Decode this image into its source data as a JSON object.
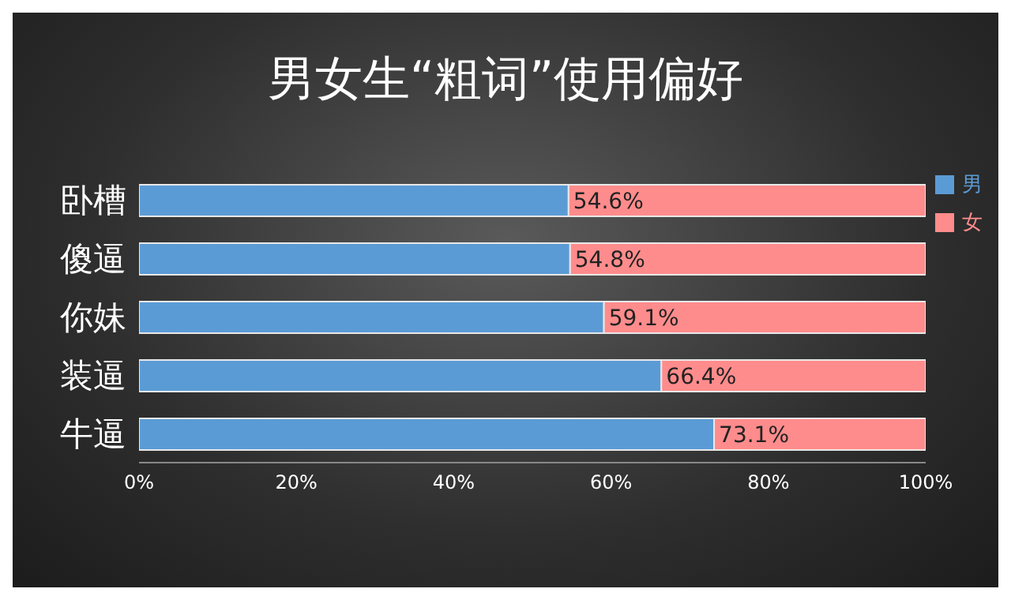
{
  "chart_data": {
    "type": "bar",
    "orientation": "horizontal",
    "stacked": true,
    "title": "男女生“粗词”使用偏好",
    "categories": [
      "卧槽",
      "傻逼",
      "你妹",
      "装逼",
      "牛逼"
    ],
    "series": [
      {
        "name": "男",
        "color": "#5b9bd5",
        "values": [
          54.6,
          54.8,
          59.1,
          66.4,
          73.1
        ],
        "value_labels": [
          "54.6%",
          "54.8%",
          "59.1%",
          "66.4%",
          "73.1%"
        ]
      },
      {
        "name": "女",
        "color": "#ff8c8c",
        "values": [
          45.4,
          45.2,
          40.9,
          33.6,
          26.9
        ]
      }
    ],
    "xlim": [
      0,
      100
    ],
    "xticks": [
      {
        "value": 0,
        "label": "0%"
      },
      {
        "value": 20,
        "label": "20%"
      },
      {
        "value": 40,
        "label": "40%"
      },
      {
        "value": 60,
        "label": "60%"
      },
      {
        "value": 80,
        "label": "80%"
      },
      {
        "value": 100,
        "label": "100%"
      }
    ],
    "grid": false,
    "legend": "right"
  }
}
